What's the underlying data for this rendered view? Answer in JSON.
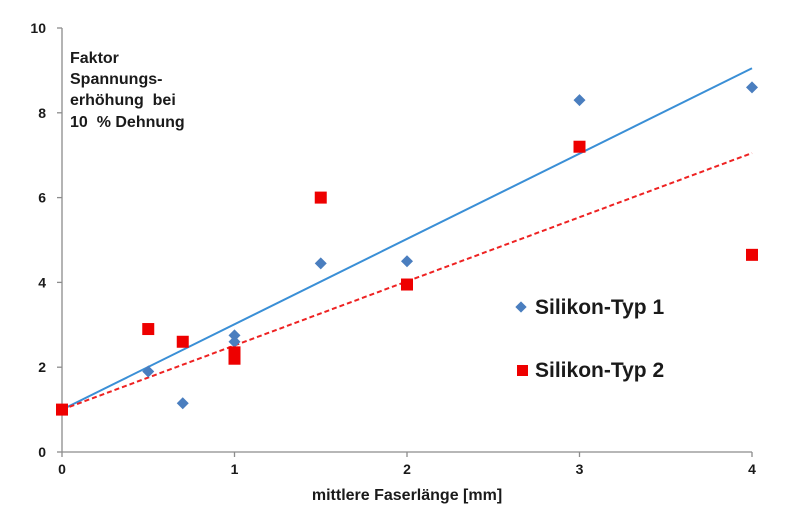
{
  "chart_data": {
    "type": "scatter",
    "title": "",
    "xlabel": "mittlere Faserlänge [mm]",
    "ylabel_lines": [
      "Faktor",
      "Spannungs-",
      "erhöhung  bei",
      "10  % Dehnung"
    ],
    "xlim": [
      0,
      4
    ],
    "ylim": [
      0,
      10
    ],
    "xticks": [
      "0",
      "1",
      "2",
      "3",
      "4"
    ],
    "yticks": [
      "0",
      "2",
      "4",
      "6",
      "8",
      "10"
    ],
    "grid": false,
    "legend_position": "right",
    "series": [
      {
        "name": "Silikon-Typ 1",
        "marker": "diamond",
        "color": "#4a7ebf",
        "points": [
          [
            0,
            1.0
          ],
          [
            0.5,
            1.9
          ],
          [
            0.7,
            1.15
          ],
          [
            1.0,
            2.75
          ],
          [
            1.0,
            2.6
          ],
          [
            1.5,
            4.45
          ],
          [
            2.0,
            4.5
          ],
          [
            3.0,
            8.3
          ],
          [
            4.0,
            8.6
          ]
        ],
        "trend": {
          "style": "solid",
          "color": "#3a8fd6",
          "from": [
            0,
            1.0
          ],
          "to": [
            4,
            9.05
          ]
        }
      },
      {
        "name": "Silikon-Typ 2",
        "marker": "square",
        "color": "#ee0000",
        "points": [
          [
            0,
            1.0
          ],
          [
            0.5,
            2.9
          ],
          [
            0.7,
            2.6
          ],
          [
            1.0,
            2.35
          ],
          [
            1.0,
            2.2
          ],
          [
            1.5,
            6.0
          ],
          [
            2.0,
            3.95
          ],
          [
            3.0,
            7.2
          ],
          [
            4.0,
            4.65
          ]
        ],
        "trend": {
          "style": "dashed",
          "color": "#ee2222",
          "from": [
            0,
            1.0
          ],
          "to": [
            4,
            7.05
          ]
        }
      }
    ]
  }
}
